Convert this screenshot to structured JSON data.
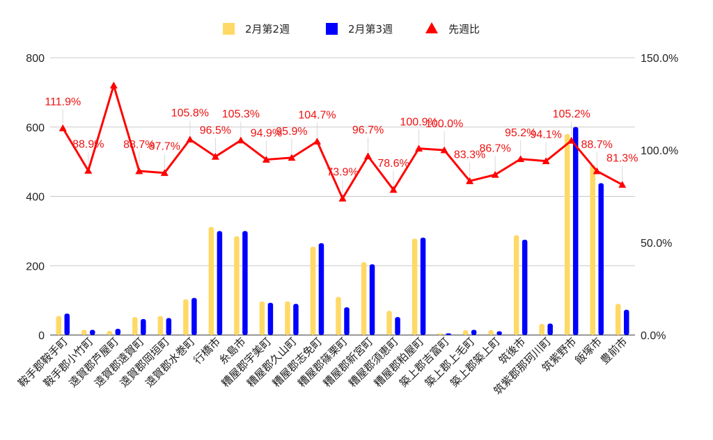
{
  "chart_data": {
    "type": "bar",
    "categories": [
      "鞍手郡鞍手町",
      "鞍手郡小竹町",
      "遠賀郡芦屋町",
      "遠賀郡遠賀町",
      "遠賀郡岡垣町",
      "遠賀郡水巻町",
      "行橋市",
      "糸島市",
      "糟屋郡宇美町",
      "糟屋郡久山町",
      "糟屋郡志免町",
      "糟屋郡篠栗町",
      "糟屋郡新宮町",
      "糟屋郡須恵町",
      "糟屋郡粕屋町",
      "築上郡吉富町",
      "築上郡上毛町",
      "築上郡築上町",
      "筑後市",
      "筑紫郡那珂川町",
      "筑紫野市",
      "飯塚市",
      "豊前市"
    ],
    "series": [
      {
        "name": "2月第2週",
        "type": "bar",
        "axis": "left",
        "color": "#ffd966",
        "values": [
          55,
          15,
          12,
          52,
          55,
          103,
          312,
          285,
          97,
          97,
          255,
          110,
          210,
          70,
          278,
          5,
          14,
          14,
          288,
          32,
          580,
          490,
          90
        ]
      },
      {
        "name": "2月第3週",
        "type": "bar",
        "axis": "left",
        "color": "#0000ff",
        "values": [
          62,
          15,
          18,
          46,
          49,
          107,
          300,
          300,
          93,
          90,
          265,
          80,
          204,
          52,
          281,
          5,
          15,
          11,
          275,
          33,
          600,
          438,
          73
        ]
      },
      {
        "name": "先週比",
        "type": "line",
        "axis": "right",
        "color": "#ff0000",
        "marker": "triangle",
        "values": [
          111.9,
          88.9,
          135,
          88.7,
          87.7,
          105.8,
          96.5,
          105.3,
          94.9,
          95.9,
          104.7,
          73.9,
          96.7,
          78.6,
          100.9,
          100.0,
          83.3,
          86.7,
          95.2,
          94.1,
          105.2,
          88.7,
          81.3
        ],
        "labels": [
          "111.9%",
          "88.9%",
          "",
          "88.7%",
          "87.7%",
          "105.8%",
          "96.5%",
          "105.3%",
          "94.9%",
          "95.9%",
          "104.7%",
          "73.9%",
          "96.7%",
          "78.6%",
          "100.9%",
          "100.0%",
          "83.3%",
          "86.7%",
          "95.2%",
          "94.1%",
          "105.2%",
          "88.7%",
          "81.3%"
        ]
      }
    ],
    "y_left": {
      "min": 0,
      "max": 800,
      "ticks": [
        "0",
        "200",
        "400",
        "600",
        "800"
      ]
    },
    "y_right": {
      "min": 0,
      "max": 150,
      "ticks": [
        "0.0%",
        "50.0%",
        "100.0%",
        "150.0%"
      ]
    },
    "grid": true,
    "legend": "top-center"
  }
}
